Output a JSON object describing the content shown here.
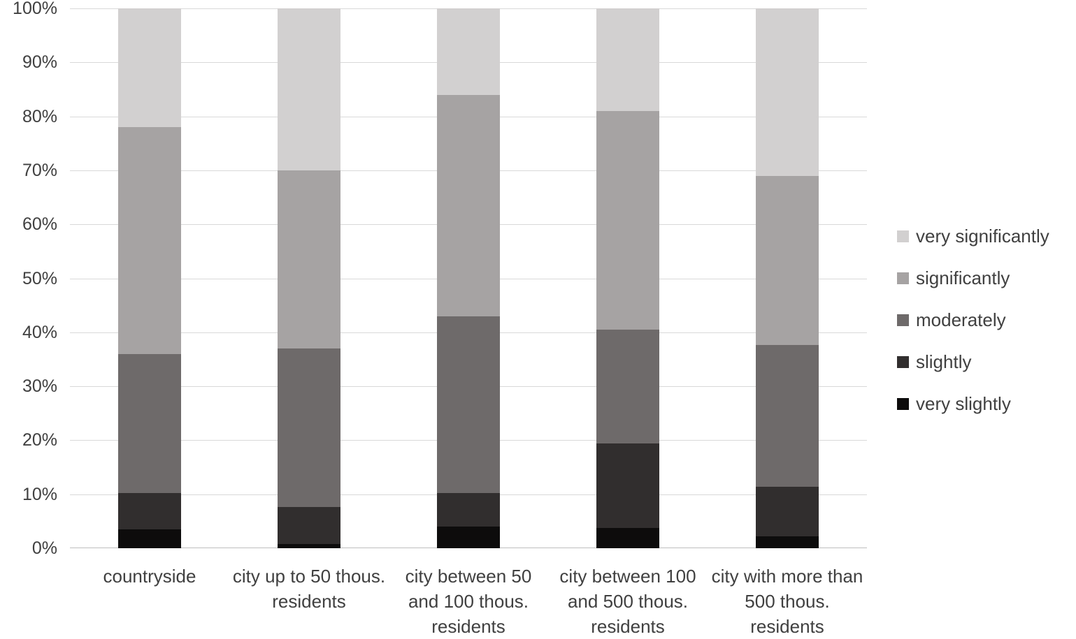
{
  "chart_data": {
    "type": "bar",
    "stacked": true,
    "percent": true,
    "title": "",
    "xlabel": "",
    "ylabel": "",
    "grid": true,
    "legend_position": "right",
    "ylim": [
      0,
      100
    ],
    "yticks": [
      "0%",
      "10%",
      "20%",
      "30%",
      "40%",
      "50%",
      "60%",
      "70%",
      "80%",
      "90%",
      "100%"
    ],
    "categories": [
      "countryside",
      "city up to 50 thous. residents",
      "city between 50 and 100 thous. residents",
      "city between 100 and 500 thous. residents",
      "city with more than 500 thous. residents"
    ],
    "series": [
      {
        "name": "very slightly",
        "color": "#0d0c0c",
        "values": [
          3.5,
          0.8,
          4.0,
          3.8,
          2.2
        ]
      },
      {
        "name": "slightly",
        "color": "#312e2e",
        "values": [
          6.7,
          6.8,
          6.2,
          15.6,
          9.2
        ]
      },
      {
        "name": "moderately",
        "color": "#6e6a6a",
        "values": [
          25.8,
          29.4,
          32.7,
          21.1,
          26.2
        ]
      },
      {
        "name": "significantly",
        "color": "#a6a3a3",
        "values": [
          42.0,
          33.0,
          41.0,
          40.5,
          31.3
        ]
      },
      {
        "name": "very significantly",
        "color": "#d2d0d0",
        "values": [
          22.0,
          30.0,
          16.1,
          19.0,
          31.1
        ]
      }
    ],
    "legend_order": [
      "very significantly",
      "significantly",
      "moderately",
      "slightly",
      "very slightly"
    ]
  },
  "colors": {
    "background": "#ffffff",
    "gridline": "#d9d9d9",
    "axis_line": "#bfbfbf",
    "text": "#404040"
  }
}
